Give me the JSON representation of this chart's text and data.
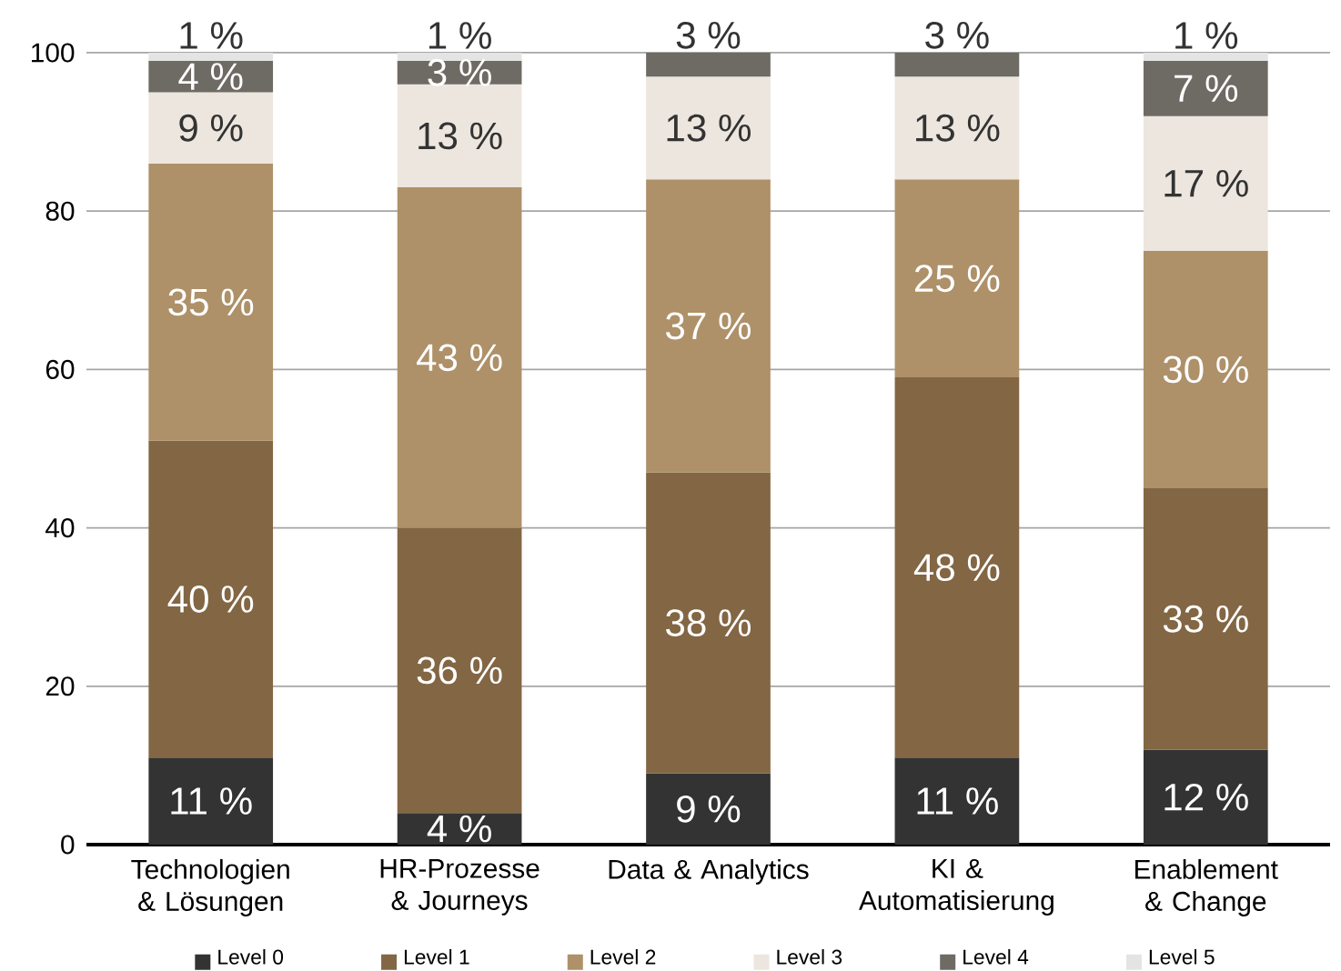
{
  "chart_data": {
    "type": "bar",
    "stacked": true,
    "categories": [
      "Technologien & Lösungen",
      "HR-Prozesse & Journeys",
      "Data & Analytics",
      "KI & Automatisierung",
      "Enablement & Change"
    ],
    "series": [
      {
        "name": "Level 0",
        "color": "#333333",
        "values": [
          11,
          4,
          9,
          11,
          12
        ],
        "value_labels": [
          "11 %",
          "4 %",
          "9 %",
          "11 %",
          "12 %"
        ]
      },
      {
        "name": "Level 1",
        "color": "#836644",
        "values": [
          40,
          36,
          38,
          48,
          33
        ],
        "value_labels": [
          "40 %",
          "36 %",
          "38 %",
          "48 %",
          "33 %"
        ]
      },
      {
        "name": "Level 2",
        "color": "#ae9169",
        "values": [
          35,
          43,
          37,
          25,
          30
        ],
        "value_labels": [
          "35 %",
          "43 %",
          "37 %",
          "25 %",
          "30 %"
        ]
      },
      {
        "name": "Level 3",
        "color": "#ede6de",
        "values": [
          9,
          13,
          13,
          13,
          17
        ],
        "value_labels": [
          "9 %",
          "13 %",
          "13 %",
          "13 %",
          "17 %"
        ]
      },
      {
        "name": "Level 4",
        "color": "#6e6a64",
        "values": [
          4,
          3,
          3,
          3,
          7
        ],
        "value_labels": [
          "4 %",
          "3 %",
          "3 %",
          "3 %",
          "7 %"
        ]
      },
      {
        "name": "Level 5",
        "color": "#e4e4e4",
        "values": [
          1,
          1,
          null,
          null,
          1
        ],
        "value_labels": [
          "1 %",
          "1 %",
          null,
          null,
          "1 %"
        ]
      }
    ],
    "ylim": [
      0,
      100
    ],
    "yticks": [
      0,
      20,
      40,
      60,
      80,
      100
    ],
    "grid": "y",
    "legend": "bottom"
  }
}
